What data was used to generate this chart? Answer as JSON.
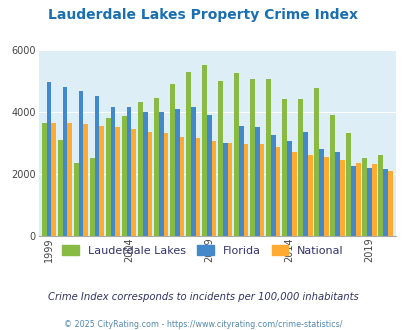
{
  "title": "Lauderdale Lakes Property Crime Index",
  "title_color": "#1a6faf",
  "subtitle": "Crime Index corresponds to incidents per 100,000 inhabitants",
  "subtitle_color": "#333366",
  "copyright": "© 2025 CityRating.com - https://www.cityrating.com/crime-statistics/",
  "copyright_color": "#5588aa",
  "years": [
    1999,
    2000,
    2001,
    2002,
    2003,
    2004,
    2005,
    2006,
    2007,
    2008,
    2009,
    2010,
    2011,
    2012,
    2013,
    2014,
    2015,
    2016,
    2017,
    2018,
    2019,
    2020
  ],
  "lauderdale_lakes": [
    3650,
    3100,
    2350,
    2500,
    3800,
    3850,
    4300,
    4450,
    4900,
    5280,
    5500,
    5000,
    5250,
    5050,
    5050,
    4400,
    4400,
    4750,
    3900,
    3300,
    2500,
    2600
  ],
  "florida": [
    4950,
    4800,
    4650,
    4500,
    4150,
    4150,
    4000,
    4000,
    4100,
    4150,
    3900,
    3000,
    3550,
    3500,
    3250,
    3050,
    3350,
    2800,
    2700,
    2250,
    2200,
    2150
  ],
  "national": [
    3650,
    3650,
    3600,
    3550,
    3500,
    3450,
    3350,
    3300,
    3200,
    3150,
    3050,
    3000,
    2950,
    2950,
    2850,
    2700,
    2600,
    2550,
    2450,
    2350,
    2300,
    2100
  ],
  "bar_colors": [
    "#88bb44",
    "#4488cc",
    "#ffaa33"
  ],
  "bg_color": "#ddeef6",
  "ylim": [
    0,
    6000
  ],
  "yticks": [
    0,
    2000,
    4000,
    6000
  ],
  "legend_labels": [
    "Lauderdale Lakes",
    "Florida",
    "National"
  ],
  "xlabel_ticks": [
    1999,
    2004,
    2009,
    2014,
    2019
  ]
}
